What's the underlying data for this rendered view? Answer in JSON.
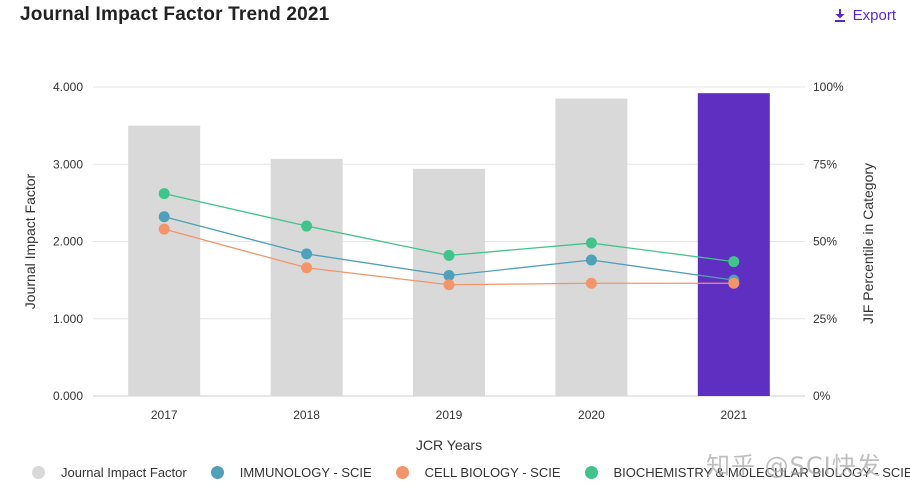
{
  "header": {
    "title": "Journal Impact Factor Trend 2021",
    "export_label": "Export"
  },
  "colors": {
    "bar_default": "#d9d9d9",
    "bar_highlight": "#5e2fc0",
    "immunology": "#4fa0b8",
    "cell_biology": "#f2956a",
    "biochemistry": "#40c48b",
    "accent": "#5a2bc4"
  },
  "chart_data": {
    "type": "bar+line",
    "categories": [
      "2017",
      "2018",
      "2019",
      "2020",
      "2021"
    ],
    "xlabel": "JCR Years",
    "ylabel": "Journal Impact Factor",
    "ylabel_right": "JIF Percentile in Category",
    "ylim": [
      0,
      4
    ],
    "ylim_right": [
      0,
      100
    ],
    "yticks": [
      "0.000",
      "1.000",
      "2.000",
      "3.000",
      "4.000"
    ],
    "yticks_right": [
      "0%",
      "25%",
      "50%",
      "75%",
      "100%"
    ],
    "grid": true,
    "bars": {
      "name": "Journal Impact Factor",
      "values": [
        3.5,
        3.07,
        2.94,
        3.85,
        3.92
      ],
      "highlight_index": 4
    },
    "series": [
      {
        "name": "IMMUNOLOGY - SCIE",
        "axis": "right",
        "values": [
          58,
          46,
          39,
          44,
          37.5
        ]
      },
      {
        "name": "CELL BIOLOGY - SCIE",
        "axis": "right",
        "values": [
          54,
          41.5,
          36,
          36.5,
          36.5
        ]
      },
      {
        "name": "BIOCHEMISTRY & MOLECULAR BIOLOGY - SCIE",
        "axis": "right",
        "values": [
          65.5,
          55,
          45.5,
          49.5,
          43.5
        ]
      }
    ]
  },
  "legend": {
    "items": [
      {
        "label": "Journal Impact Factor",
        "color": "#d9d9d9"
      },
      {
        "label": "IMMUNOLOGY - SCIE",
        "color": "#4fa0b8"
      },
      {
        "label": "CELL BIOLOGY - SCIE",
        "color": "#f2956a"
      },
      {
        "label": "BIOCHEMISTRY & MOLECULAR BIOLOGY - SCIE",
        "color": "#40c48b"
      }
    ]
  },
  "watermark": "知乎 @SCI快发"
}
